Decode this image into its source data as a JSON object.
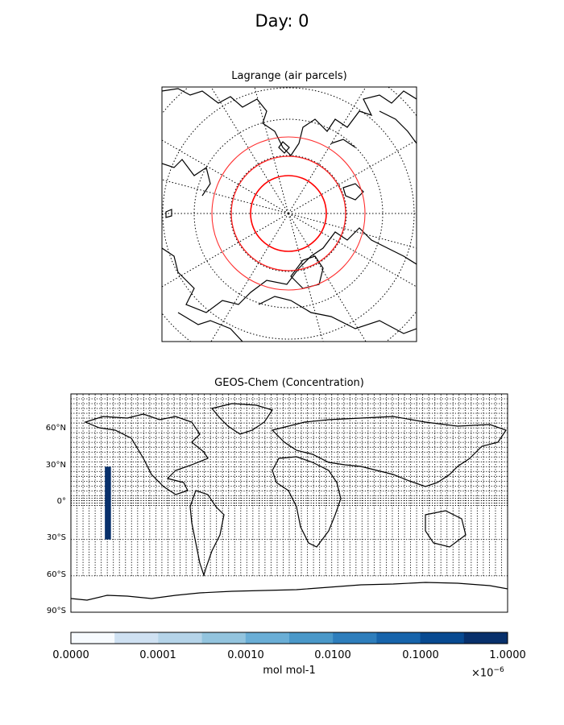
{
  "suptitle": "Day: 0",
  "panel_top": {
    "title": "Lagrange (air parcels)"
  },
  "panel_bottom": {
    "title": "GEOS-Chem (Concentration)",
    "lat_ticks": [
      "60°N",
      "30°N",
      "0°",
      "30°S",
      "60°S",
      "90°S"
    ],
    "concentration_bar": {
      "lon_range": [
        -152,
        -147
      ],
      "lat_range": [
        -30,
        30
      ]
    }
  },
  "colorbar": {
    "tick_labels": [
      "0.0000",
      "0.0001",
      "0.0010",
      "0.0100",
      "0.1000",
      "1.0000"
    ],
    "label": "mol mol-1",
    "exponent": "×10",
    "exponent_power": "−6",
    "colors": [
      "#f7fbff",
      "#e3eef9",
      "#cfe1f2",
      "#b5d4e9",
      "#93c4de",
      "#6aaed6",
      "#4a98c9",
      "#2e7ebc",
      "#1764ab",
      "#084a91",
      "#08306b"
    ]
  },
  "colors": {
    "parcel_ring": "#ff0000",
    "coastline": "#000000",
    "grid": "#000000"
  }
}
